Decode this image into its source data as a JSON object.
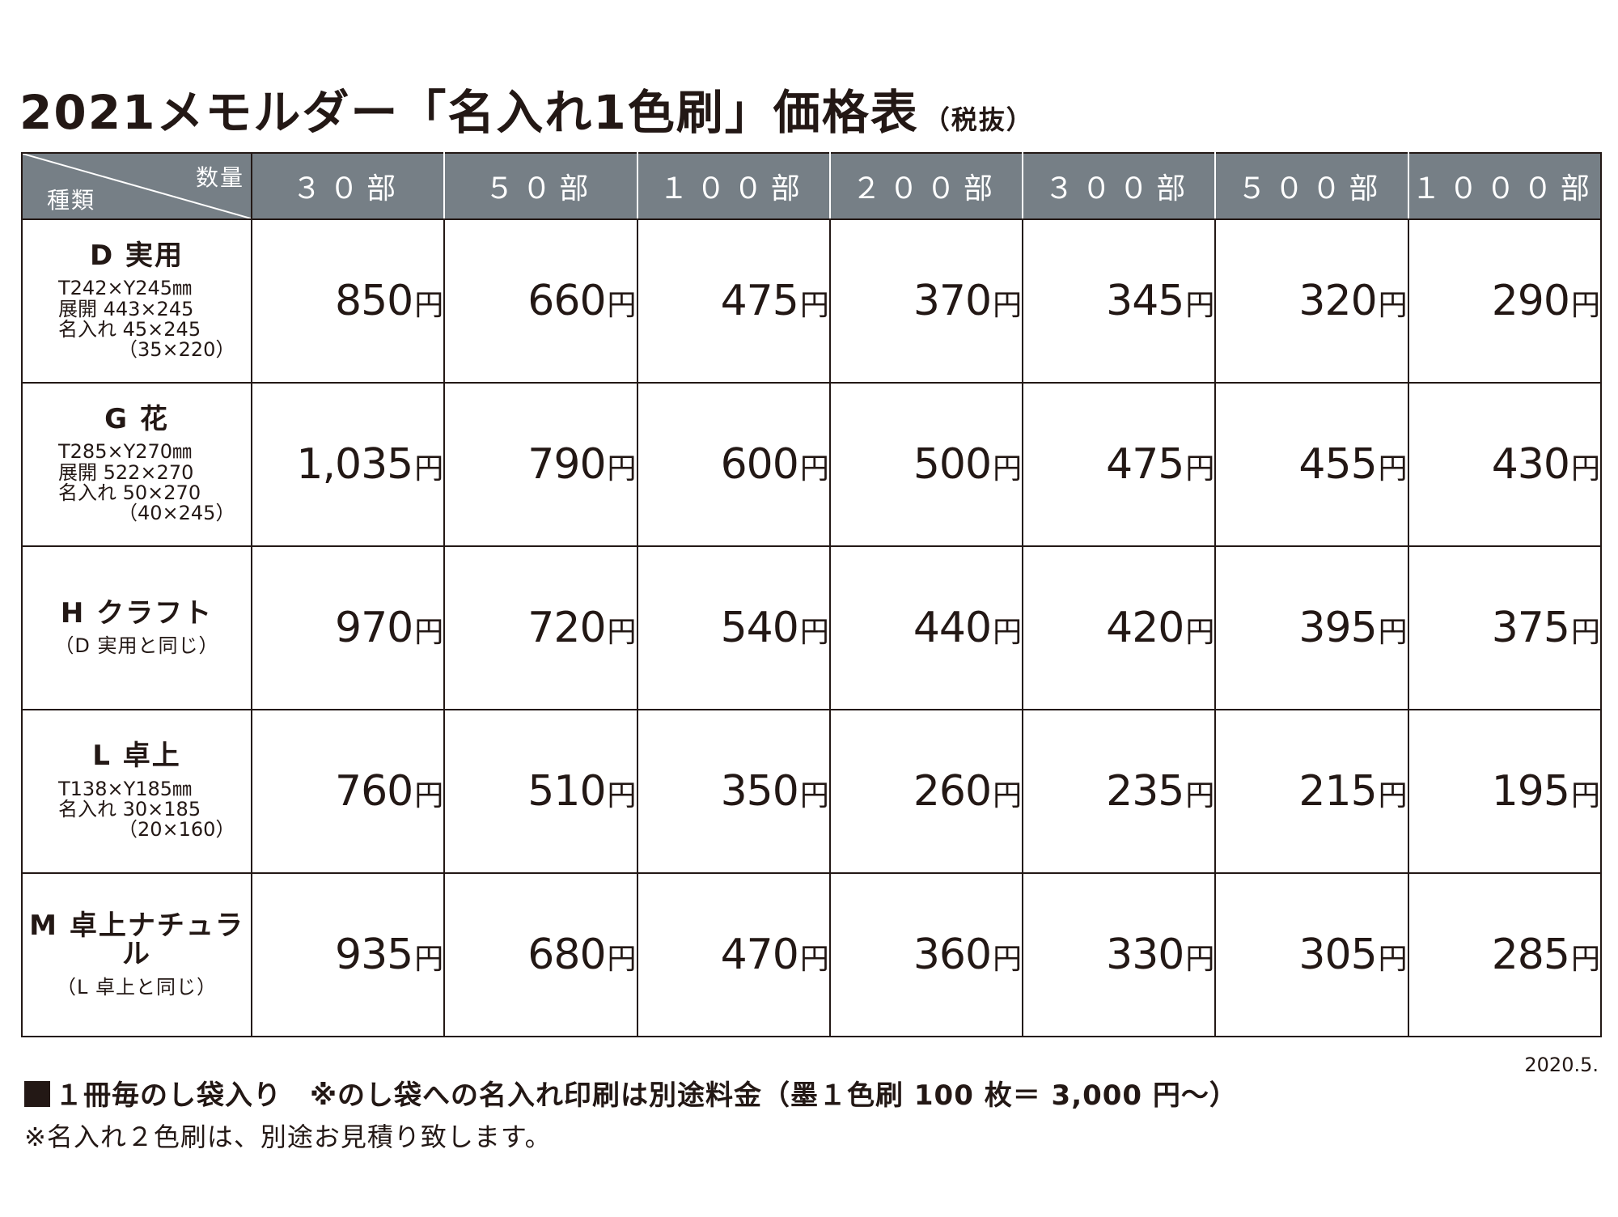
{
  "title": {
    "main": "2021メモルダー「名入れ1色刷」価格表",
    "suffix": "（税抜）"
  },
  "table": {
    "corner": {
      "quantity_label": "数量",
      "type_label": "種類"
    },
    "columns": [
      "３０部",
      "５０部",
      "１００部",
      "２００部",
      "３００部",
      "５００部",
      "１０００部"
    ],
    "unit": "円",
    "rows": [
      {
        "name": "D 実用",
        "lines": [
          "T242×Y245㎜",
          "展開 443×245",
          "名入れ 45×245"
        ],
        "paren": "（35×220）",
        "prices": [
          "850",
          "660",
          "475",
          "370",
          "345",
          "320",
          "290"
        ]
      },
      {
        "name": "G 花",
        "lines": [
          "T285×Y270㎜",
          "展開 522×270",
          "名入れ 50×270"
        ],
        "paren": "（40×245）",
        "prices": [
          "1,035",
          "790",
          "600",
          "500",
          "475",
          "455",
          "430"
        ]
      },
      {
        "name": "H クラフト",
        "note": "（D 実用と同じ）",
        "prices": [
          "970",
          "720",
          "540",
          "440",
          "420",
          "395",
          "375"
        ]
      },
      {
        "name": "L 卓上",
        "lines": [
          "T138×Y185㎜",
          "名入れ 30×185"
        ],
        "paren": "（20×160）",
        "prices": [
          "760",
          "510",
          "350",
          "260",
          "235",
          "215",
          "195"
        ]
      },
      {
        "name": "M 卓上ナチュラル",
        "note": "（L 卓上と同じ）",
        "prices": [
          "935",
          "680",
          "470",
          "360",
          "330",
          "305",
          "285"
        ]
      }
    ]
  },
  "date": "2020.5.",
  "footer": {
    "line1": "１冊毎のし袋入り　※のし袋への名入れ印刷は別途料金（墨１色刷 100 枚＝ 3,000 円〜）",
    "line2": "※名入れ２色刷は、別途お見積り致します。"
  }
}
